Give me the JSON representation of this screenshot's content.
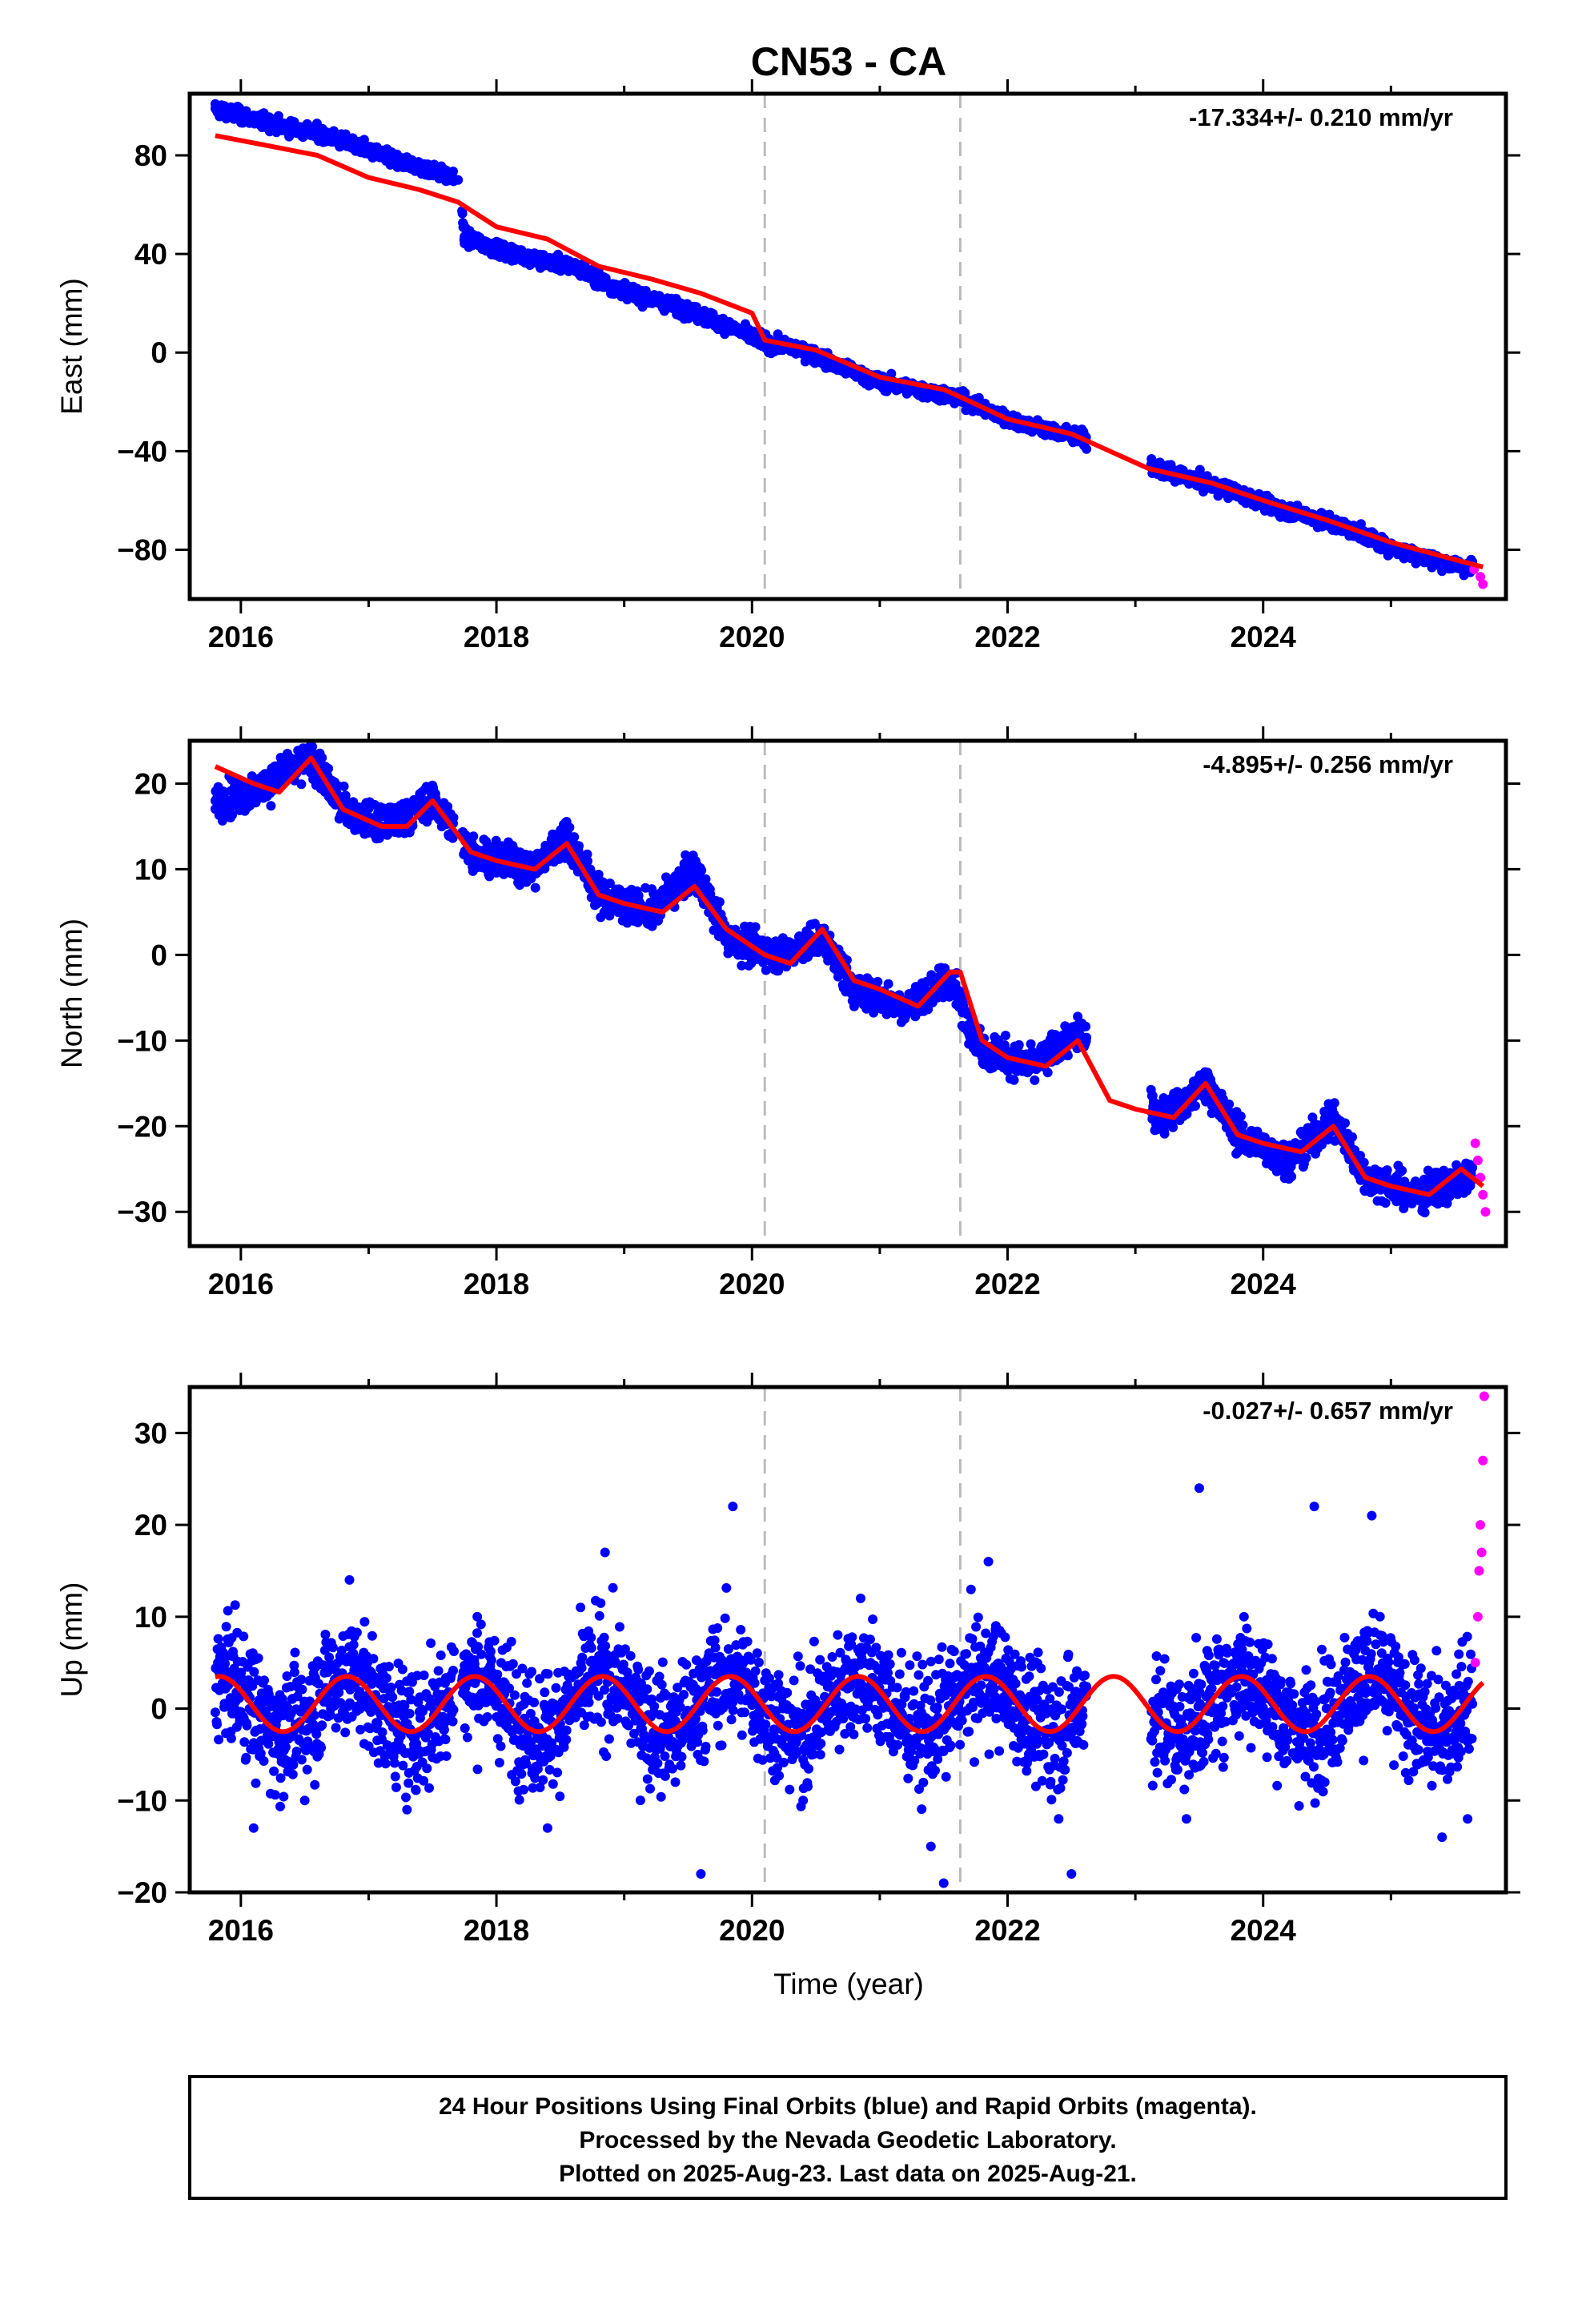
{
  "title": "CN53 - CA",
  "xlabel": "Time (year)",
  "footer": {
    "line1": "24 Hour Positions Using Final Orbits (blue) and Rapid Orbits (magenta).",
    "line2": "Processed by the Nevada Geodetic Laboratory.",
    "line3": "Plotted on 2025-Aug-23. Last data on 2025-Aug-21."
  },
  "colors": {
    "final": "#0000ff",
    "rapid": "#ff00ff",
    "model": "#ff0000",
    "event": "#bbbbbb"
  },
  "chart_data": [
    {
      "type": "scatter",
      "component": "east",
      "ylabel": "East (mm)",
      "rate": "-17.334+/- 0.210 mm/yr",
      "xlim": [
        2015.6,
        2025.9
      ],
      "ylim": [
        -100,
        105
      ],
      "xticks": [
        2016,
        2018,
        2020,
        2022,
        2024
      ],
      "yticks": [
        -80,
        -40,
        0,
        40,
        80
      ],
      "event_lines": [
        2020.1,
        2021.63
      ],
      "model": {
        "x": [
          2015.8,
          2016.2,
          2016.6,
          2017.0,
          2017.4,
          2017.7,
          2018.0,
          2018.4,
          2018.8,
          2019.2,
          2019.6,
          2020.0,
          2020.1,
          2020.5,
          2021.0,
          2021.5,
          2021.63,
          2022.0,
          2022.5,
          2022.8,
          2023.1,
          2023.6,
          2024.0,
          2024.5,
          2025.0,
          2025.5,
          2025.72
        ],
        "y": [
          88,
          84,
          80,
          71,
          66,
          61,
          51,
          46,
          35,
          30,
          24,
          16,
          5,
          1,
          -10,
          -15,
          -18,
          -27,
          -33,
          -40,
          -47,
          -53,
          -60,
          -68,
          -77,
          -84,
          -87
        ]
      },
      "series": [
        {
          "name": "Final Orbits",
          "x": [
            2015.8,
            2016.0,
            2016.3,
            2016.6,
            2016.9,
            2017.2,
            2017.5,
            2017.7,
            2017.75,
            2018.0,
            2018.3,
            2018.6,
            2018.9,
            2019.2,
            2019.5,
            2019.8,
            2020.1,
            2020.4,
            2020.7,
            2021.0,
            2021.3,
            2021.6,
            2021.9,
            2022.2,
            2022.6,
            2023.2,
            2023.5,
            2023.8,
            2024.1,
            2024.4,
            2024.7,
            2025.0,
            2025.3,
            2025.6
          ],
          "y": [
            99,
            96,
            92,
            89,
            84,
            78,
            74,
            70,
            47,
            42,
            38,
            35,
            27,
            22,
            17,
            11,
            4,
            1,
            -6,
            -12,
            -15,
            -18,
            -25,
            -30,
            -35,
            -48,
            -52,
            -57,
            -63,
            -67,
            -72,
            -79,
            -84,
            -87
          ]
        },
        {
          "name": "Rapid Orbits",
          "x": [
            2025.65,
            2025.7,
            2025.72
          ],
          "y": [
            -88,
            -91,
            -94
          ]
        }
      ]
    },
    {
      "type": "scatter",
      "component": "north",
      "ylabel": "North (mm)",
      "rate": "-4.895+/- 0.256 mm/yr",
      "xlim": [
        2015.6,
        2025.9
      ],
      "ylim": [
        -34,
        25
      ],
      "xticks": [
        2016,
        2018,
        2020,
        2022,
        2024
      ],
      "yticks": [
        -30,
        -20,
        -10,
        0,
        10,
        20
      ],
      "event_lines": [
        2020.1,
        2021.63
      ],
      "model": {
        "x": [
          2015.8,
          2016.1,
          2016.3,
          2016.55,
          2016.8,
          2017.1,
          2017.3,
          2017.5,
          2017.8,
          2018.0,
          2018.3,
          2018.55,
          2018.8,
          2019.0,
          2019.3,
          2019.55,
          2019.8,
          2020.0,
          2020.1,
          2020.3,
          2020.55,
          2020.8,
          2021.0,
          2021.3,
          2021.55,
          2021.63,
          2021.8,
          2022.0,
          2022.3,
          2022.55,
          2022.8,
          2023.0,
          2023.3,
          2023.55,
          2023.8,
          2024.0,
          2024.3,
          2024.55,
          2024.8,
          2025.0,
          2025.3,
          2025.55,
          2025.72
        ],
        "y": [
          22,
          20,
          19,
          23,
          17,
          15,
          15,
          18,
          12,
          11,
          10,
          13,
          7,
          6,
          5,
          8,
          3,
          1,
          0,
          -1,
          3,
          -3,
          -4,
          -6,
          -2,
          -2,
          -10,
          -12,
          -13,
          -10,
          -17,
          -18,
          -19,
          -15,
          -21,
          -22,
          -23,
          -20,
          -26,
          -27,
          -28,
          -25,
          -27
        ]
      },
      "series": [
        {
          "name": "Final Orbits",
          "x": [
            2015.8,
            2016.1,
            2016.55,
            2016.8,
            2017.1,
            2017.5,
            2017.8,
            2018.3,
            2018.55,
            2018.8,
            2019.2,
            2019.55,
            2019.8,
            2020.2,
            2020.55,
            2020.8,
            2021.2,
            2021.55,
            2021.8,
            2022.2,
            2022.55,
            2023.2,
            2023.55,
            2023.8,
            2024.2,
            2024.55,
            2024.8,
            2025.2,
            2025.6
          ],
          "y": [
            18,
            19,
            23,
            17,
            15,
            18,
            12,
            10,
            14,
            7,
            5,
            10,
            2,
            0,
            2,
            -4,
            -6,
            -3,
            -11,
            -13,
            -9,
            -19,
            -15,
            -21,
            -24,
            -19,
            -26,
            -28,
            -26
          ]
        },
        {
          "name": "Rapid Orbits",
          "x": [
            2025.66,
            2025.68,
            2025.7,
            2025.72,
            2025.74
          ],
          "y": [
            -22,
            -24,
            -26,
            -28,
            -30
          ]
        }
      ]
    },
    {
      "type": "scatter",
      "component": "up",
      "ylabel": "Up (mm)",
      "rate": "-0.027+/- 0.657 mm/yr",
      "xlim": [
        2015.6,
        2025.9
      ],
      "ylim": [
        -20,
        35
      ],
      "xticks": [
        2016,
        2018,
        2020,
        2022,
        2024
      ],
      "yticks": [
        -20,
        -10,
        0,
        10,
        20,
        30
      ],
      "event_lines": [
        2020.1,
        2021.63
      ],
      "model": {
        "amplitude": 3.0,
        "phase_year": 0.83,
        "offset": 0.5,
        "x_start": 2015.8,
        "x_end": 2025.72
      },
      "series": [
        {
          "name": "Final Orbits",
          "x": [
            2015.85,
            2016.1,
            2016.5,
            2016.85,
            2017.3,
            2017.85,
            2018.4,
            2018.85,
            2019.4,
            2019.6,
            2019.85,
            2020.4,
            2020.85,
            2021.4,
            2021.5,
            2021.85,
            2022.4,
            2022.5,
            2023.4,
            2023.5,
            2023.85,
            2024.4,
            2024.85,
            2025.4,
            2025.6
          ],
          "y": [
            6,
            -13,
            -10,
            14,
            -11,
            10,
            -13,
            17,
            -8,
            -18,
            22,
            -10,
            12,
            -15,
            -19,
            16,
            -12,
            -18,
            -12,
            24,
            10,
            22,
            21,
            -14,
            -12
          ]
        },
        {
          "name": "Rapid Orbits",
          "x": [
            2025.66,
            2025.68,
            2025.69,
            2025.7,
            2025.71,
            2025.72,
            2025.73
          ],
          "y": [
            5,
            10,
            15,
            20,
            17,
            27,
            34
          ]
        }
      ]
    }
  ]
}
